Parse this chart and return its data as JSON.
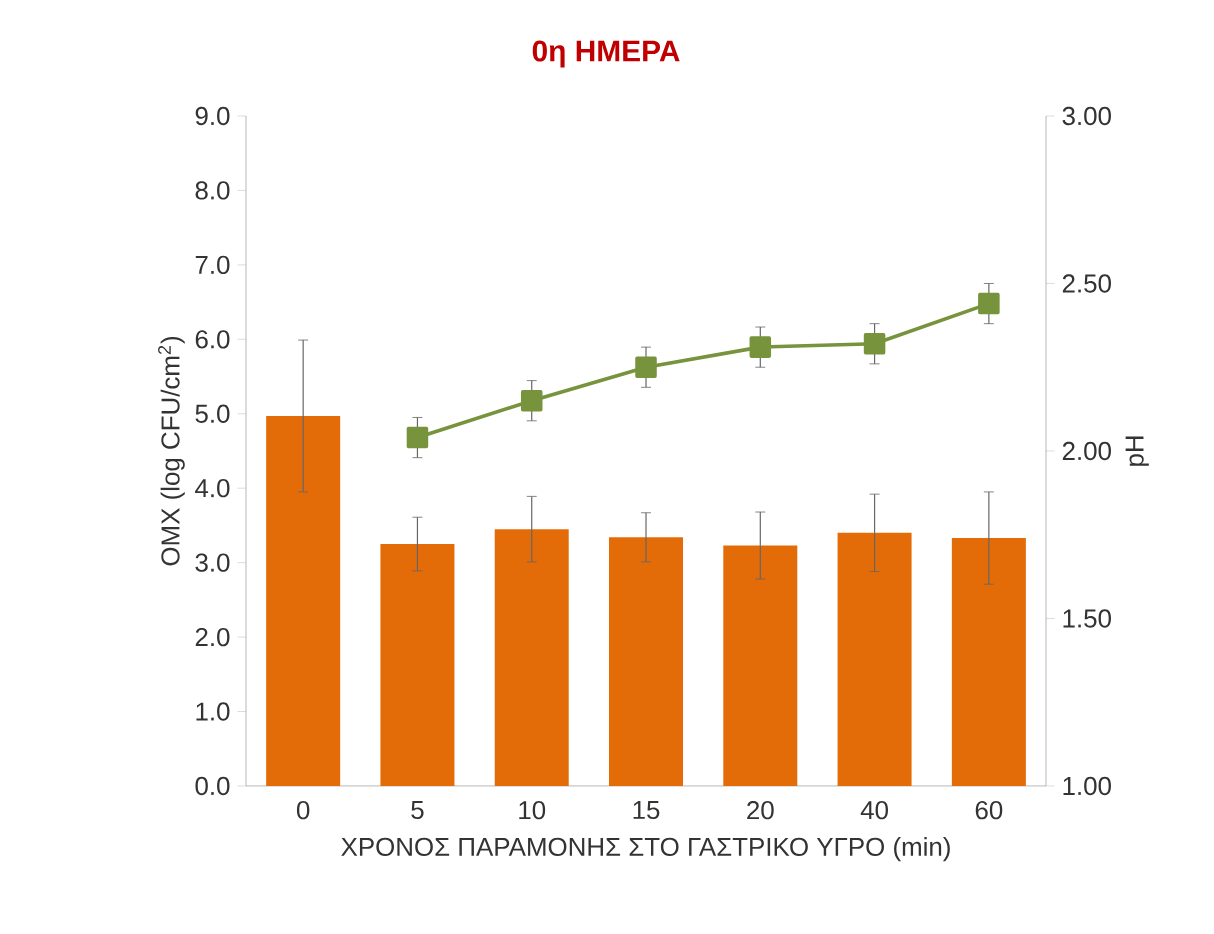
{
  "chart_data": {
    "type": "bar",
    "title": "0η ΗΜΕΡΑ",
    "xlabel": "ΧΡΟΝΟΣ ΠΑΡΑΜΟΝΗΣ ΣΤΟ ΓΑΣΤΡΙΚΟ ΥΓΡΟ (min)",
    "ylabel": "OMX (log CFU/cm$^{2}$)",
    "y2label": "pH",
    "categories": [
      "0",
      "5",
      "10",
      "15",
      "20",
      "40",
      "60"
    ],
    "series": [
      {
        "color": "#e36c09",
        "values": [
          4.97,
          3.25,
          3.45,
          3.34,
          3.23,
          3.4,
          3.33
        ],
        "errors": [
          1.02,
          0.36,
          0.44,
          0.33,
          0.45,
          0.52,
          0.62
        ]
      },
      {
        "type": "line",
        "axis": "y2",
        "color": "#77933c",
        "marker": "square",
        "values": [
          null,
          2.04,
          2.15,
          2.25,
          2.31,
          2.32,
          2.44
        ],
        "errors": [
          null,
          0.06,
          0.06,
          0.06,
          0.06,
          0.06,
          0.06
        ]
      }
    ],
    "ylim": [
      0,
      9
    ],
    "yticks": [
      {
        "value": 0,
        "label": "0.0"
      },
      {
        "value": 1,
        "label": "1.0"
      },
      {
        "value": 2,
        "label": "2.0"
      },
      {
        "value": 3,
        "label": "3.0"
      },
      {
        "value": 4,
        "label": "4.0"
      },
      {
        "value": 5,
        "label": "5.0"
      },
      {
        "value": 6,
        "label": "6.0"
      },
      {
        "value": 7,
        "label": "7.0"
      },
      {
        "value": 8,
        "label": "8.0"
      },
      {
        "value": 9,
        "label": "9.0"
      }
    ],
    "y2lim": [
      1,
      3
    ],
    "y2ticks": [
      {
        "value": 1,
        "label": "1.00"
      },
      {
        "value": 1.5,
        "label": "1.50"
      },
      {
        "value": 2,
        "label": "2.00"
      },
      {
        "value": 2.5,
        "label": "2.50"
      },
      {
        "value": 3,
        "label": "3.00"
      }
    ],
    "grid": false
  }
}
